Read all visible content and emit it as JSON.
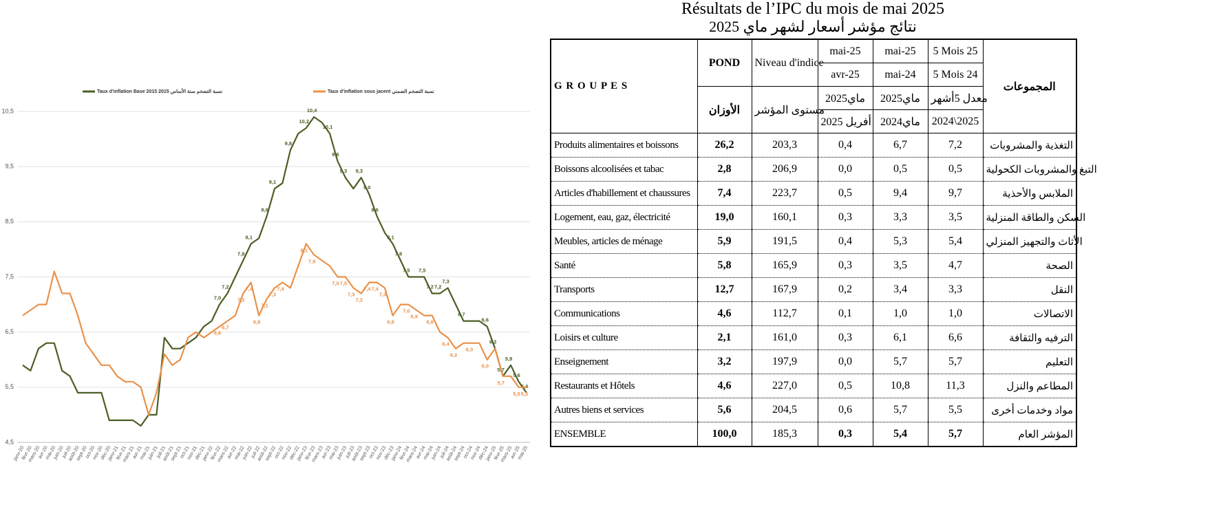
{
  "chart_data": {
    "type": "line",
    "categories": [
      "janv-20",
      "févr-20",
      "mars-20",
      "avr-20",
      "mai-20",
      "juin-20",
      "juil-20",
      "août-20",
      "sept-20",
      "oct-20",
      "nov-20",
      "déc-20",
      "janv-21",
      "févr-21",
      "mars-21",
      "avr-21",
      "mai-21",
      "juin-21",
      "juil-21",
      "août-21",
      "sept-21",
      "oct-21",
      "nov-21",
      "déc-21",
      "janv-22",
      "févr-22",
      "mars-22",
      "avr-22",
      "mai-22",
      "juin-22",
      "juil-22",
      "août-22",
      "sept-22",
      "oct-22",
      "nov-22",
      "déc-22",
      "janv-23",
      "févr-23",
      "mars-23",
      "avr-23",
      "mai-23",
      "juin-23",
      "juil-23",
      "août-23",
      "sept-23",
      "oct-23",
      "nov-23",
      "déc-23",
      "janv-24",
      "févr-24",
      "mars-24",
      "avr-24",
      "mai-24",
      "juin-24",
      "juil-24",
      "août-24",
      "sept-24",
      "oct-24",
      "nov-24",
      "déc-24",
      "janv-25",
      "févr-25",
      "mars-25",
      "avr-25",
      "mai-25"
    ],
    "series": [
      {
        "name": "Taux d'inflation Base 2015 نسبة التضخم سنة الأساس 2015",
        "color": "#4b5e24",
        "values": [
          5.9,
          5.8,
          6.2,
          6.3,
          6.3,
          5.8,
          5.7,
          5.4,
          5.4,
          5.4,
          5.4,
          4.9,
          4.9,
          4.9,
          4.9,
          4.8,
          5.0,
          5.0,
          6.4,
          6.2,
          6.2,
          6.3,
          6.4,
          6.6,
          6.7,
          7.0,
          7.2,
          7.5,
          7.8,
          8.1,
          8.2,
          8.6,
          9.1,
          9.2,
          9.8,
          10.1,
          10.2,
          10.4,
          10.3,
          10.1,
          9.6,
          9.3,
          9.1,
          9.3,
          9.0,
          8.6,
          8.3,
          8.1,
          7.8,
          7.5,
          7.5,
          7.5,
          7.2,
          7.2,
          7.3,
          7.0,
          6.7,
          6.7,
          6.7,
          6.6,
          6.2,
          5.7,
          5.9,
          5.6,
          5.4
        ],
        "value_labels": [
          null,
          null,
          null,
          null,
          null,
          null,
          null,
          null,
          null,
          null,
          null,
          null,
          null,
          null,
          null,
          null,
          null,
          null,
          null,
          null,
          null,
          null,
          null,
          null,
          null,
          "7,0",
          "7,2",
          null,
          "7,8",
          "8,1",
          null,
          "8,6",
          "9,1",
          null,
          "9,8",
          null,
          "10,2",
          "10,4",
          null,
          "10,1",
          "9,6",
          "9,3",
          null,
          "9,3",
          "9,0",
          "8,6",
          null,
          "8,1",
          "7,8",
          "7,5",
          null,
          "7,5",
          "7,2",
          "7,2",
          "7,3",
          null,
          "6,7",
          null,
          null,
          "6,6",
          "6,2",
          "5,7",
          "5,9",
          "5,6",
          "5,4"
        ]
      },
      {
        "name": "Taux d'inflation sous jacent نسبة التضخم الضمني",
        "color": "#e9914a",
        "values": [
          6.8,
          6.9,
          7.0,
          7.0,
          7.6,
          7.2,
          7.2,
          6.8,
          6.3,
          6.1,
          5.9,
          5.9,
          5.7,
          5.6,
          5.6,
          5.5,
          5.0,
          5.4,
          6.1,
          5.9,
          6.0,
          6.4,
          6.5,
          6.4,
          6.5,
          6.6,
          6.7,
          6.8,
          7.2,
          7.4,
          6.8,
          7.1,
          7.3,
          7.4,
          7.3,
          7.7,
          8.1,
          7.9,
          7.8,
          7.7,
          7.5,
          7.5,
          7.3,
          7.2,
          7.4,
          7.4,
          7.3,
          6.8,
          7.0,
          7.0,
          6.9,
          6.8,
          6.8,
          6.5,
          6.4,
          6.2,
          6.3,
          6.3,
          6.3,
          6.0,
          6.2,
          5.7,
          5.7,
          5.5,
          5.5
        ],
        "value_labels": [
          null,
          null,
          null,
          null,
          null,
          null,
          null,
          null,
          null,
          null,
          null,
          null,
          null,
          null,
          null,
          null,
          null,
          null,
          null,
          null,
          null,
          null,
          null,
          null,
          null,
          "6,6",
          "6,7",
          null,
          "7,2",
          "7,4",
          "6,8",
          "7,1",
          "7,3",
          "7,4",
          null,
          null,
          "8,1",
          "7,9",
          null,
          null,
          "7,5",
          "7,5",
          "7,3",
          "7,2",
          "7,4",
          "7,4",
          "7,3",
          "6,8",
          null,
          "7,0",
          "6,9",
          null,
          "6,8",
          null,
          "6,4",
          "6,2",
          null,
          "6,3",
          null,
          "6,0",
          null,
          "5,7",
          null,
          "5,5",
          "5,5"
        ]
      }
    ],
    "ylim": [
      4.5,
      10.5
    ],
    "yticks": [
      {
        "value": 4.5,
        "label": "4,5"
      },
      {
        "value": 5.5,
        "label": "5,5"
      },
      {
        "value": 6.5,
        "label": "6,5"
      },
      {
        "value": 7.5,
        "label": "7,5"
      },
      {
        "value": 8.5,
        "label": "8,5"
      },
      {
        "value": 9.5,
        "label": "9,5"
      },
      {
        "value": 10.5,
        "label": "10,5"
      }
    ],
    "grid": true,
    "legend": "top"
  },
  "table": {
    "title": "Résultats de l’IPC du mois de mai 2025",
    "subtitle": "نتائج مؤشر أسعار لشهر ماي 2025",
    "header": {
      "groupes": "G R O U P E S",
      "groupes_ar": "المجموعات",
      "pond": "POND",
      "pond_ar": "الأوزان",
      "niveau": "Niveau d'indice",
      "niveau_ar": "مستوى المؤشر",
      "periods": [
        [
          "mai-25",
          "avr-25",
          "ماي2025",
          "أفريل 2025"
        ],
        [
          "mai-25",
          "mai-24",
          "ماي2025",
          "ماي2024"
        ],
        [
          "5 Mois 25",
          "5 Mois 24",
          "معدل 5أشهر",
          "2024\\2025"
        ]
      ]
    },
    "rows": [
      [
        "Produits alimentaires et boissons",
        "26,2",
        "203,3",
        "0,4",
        "6,7",
        "7,2",
        "التغذية والمشروبات"
      ],
      [
        "Boissons alcoolisées et tabac",
        "2,8",
        "206,9",
        "0,0",
        "0,5",
        "0,5",
        "التبغ والمشروبات الكحولية"
      ],
      [
        "Articles d'habillement et chaussures",
        "7,4",
        "223,7",
        "0,5",
        "9,4",
        "9,7",
        "الملابس والأحذية"
      ],
      [
        "Logement, eau, gaz, électricité",
        "19,0",
        "160,1",
        "0,3",
        "3,3",
        "3,5",
        "السكن والطاقة المنزلية"
      ],
      [
        "Meubles, articles de ménage",
        "5,9",
        "191,5",
        "0,4",
        "5,3",
        "5,4",
        "الأثاث والتجهيز المنزلي"
      ],
      [
        "Santé",
        "5,8",
        "165,9",
        "0,3",
        "3,5",
        "4,7",
        "الصحة"
      ],
      [
        "Transports",
        "12,7",
        "167,9",
        "0,2",
        "3,4",
        "3,3",
        "النقل"
      ],
      [
        "Communications",
        "4,6",
        "112,7",
        "0,1",
        "1,0",
        "1,0",
        "الاتصالات"
      ],
      [
        "Loisirs et culture",
        "2,1",
        "161,0",
        "0,3",
        "6,1",
        "6,6",
        "الترفيه والثقافة"
      ],
      [
        "Enseignement",
        "3,2",
        "197,9",
        "0,0",
        "5,7",
        "5,7",
        "التعليم"
      ],
      [
        "Restaurants et Hôtels",
        "4,6",
        "227,0",
        "0,5",
        "10,8",
        "11,3",
        "المطاعم والنزل"
      ],
      [
        "Autres biens et services",
        "5,6",
        "204,5",
        "0,6",
        "5,7",
        "5,5",
        "مواد وخدمات أخرى"
      ],
      [
        "ENSEMBLE",
        "100,0",
        "185,3",
        "0,3",
        "5,4",
        "5,7",
        "المؤشر العام"
      ]
    ]
  }
}
